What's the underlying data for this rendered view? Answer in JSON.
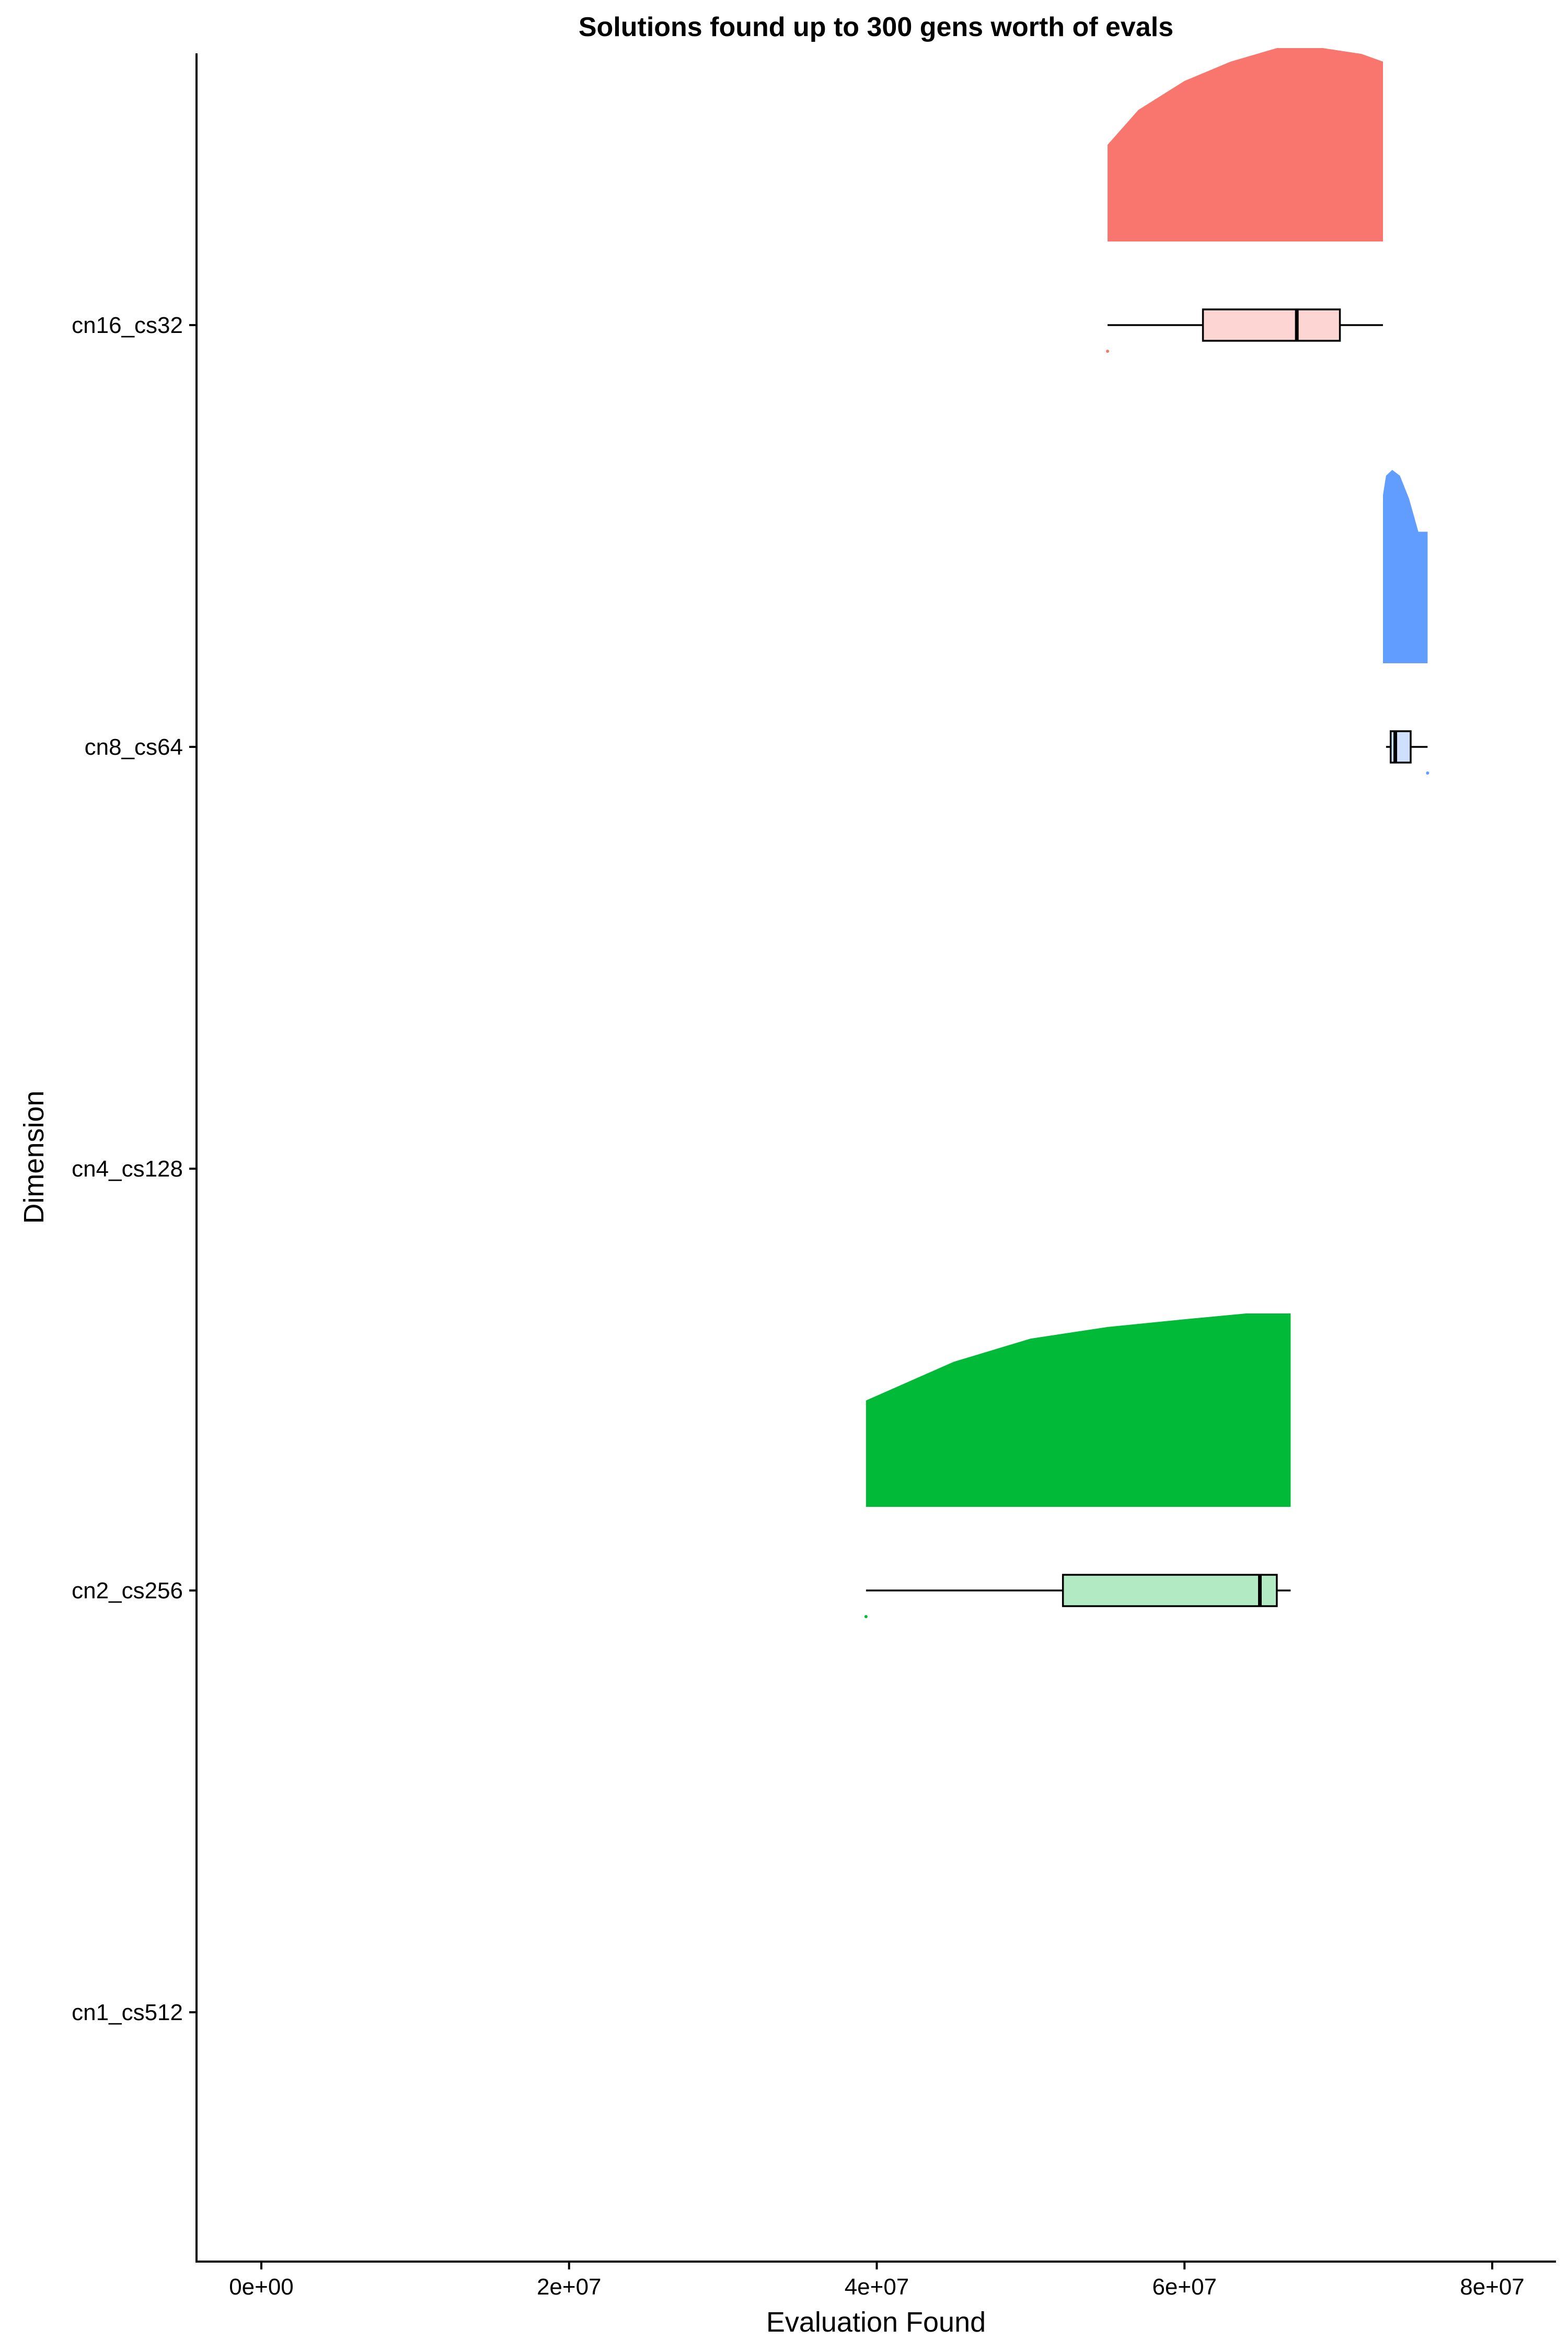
{
  "chart_data": {
    "type": "raincloud",
    "title": "Solutions found up to 300 gens worth of evals",
    "xlabel": "Evaluation Found",
    "ylabel": "Dimension",
    "xlim": [
      -1000000,
      84000000
    ],
    "x_ticks": [
      0,
      20000000,
      40000000,
      60000000,
      80000000
    ],
    "x_tick_labels": [
      "0e+00",
      "2e+07",
      "4e+07",
      "6e+07",
      "8e+07"
    ],
    "categories": [
      "cn16_cs32",
      "cn8_cs64",
      "cn4_cs128",
      "cn2_cs256",
      "cn1_cs512"
    ],
    "grid": false,
    "legend": "none",
    "series": [
      {
        "category": "cn16_cs32",
        "color": "#F8766D",
        "box_fill": "#FDD5D2",
        "box": {
          "min": 55000000,
          "q1": 61200000,
          "median": 67300000,
          "q3": 70100000,
          "max": 72900000
        },
        "points": [
          55000000
        ],
        "density": {
          "x": [
            55000000,
            57000000,
            60000000,
            63000000,
            66000000,
            69000000,
            71500000,
            72900000
          ],
          "y": [
            0.5,
            0.68,
            0.83,
            0.93,
            1.0,
            1.0,
            0.97,
            0.93
          ]
        }
      },
      {
        "category": "cn8_cs64",
        "color": "#619CFF",
        "box_fill": "#CFE0FF",
        "box": {
          "min": 73100000,
          "q1": 73400000,
          "median": 73700000,
          "q3": 74700000,
          "max": 75800000
        },
        "points": [
          75800000
        ],
        "density": {
          "x": [
            72900000,
            73100000,
            73500000,
            74000000,
            74600000,
            75200000,
            75800000
          ],
          "y": [
            0.87,
            0.97,
            1.0,
            0.97,
            0.85,
            0.68,
            0.68
          ]
        }
      },
      {
        "category": "cn4_cs128",
        "color": "#00BA38",
        "box": null,
        "points": [],
        "density": null
      },
      {
        "category": "cn2_cs256",
        "color": "#00BA38",
        "box_fill": "#B2EBC3",
        "box": {
          "min": 39300000,
          "q1": 52100000,
          "median": 64900000,
          "q3": 66000000,
          "max": 66900000
        },
        "points": [
          39300000
        ],
        "density": {
          "x": [
            39300000,
            45000000,
            50000000,
            55000000,
            60000000,
            64000000,
            66900000
          ],
          "y": [
            0.55,
            0.75,
            0.87,
            0.93,
            0.97,
            1.0,
            1.0
          ]
        }
      },
      {
        "category": "cn1_cs512",
        "color": "#F8766D",
        "box": null,
        "points": [],
        "density": null
      }
    ]
  }
}
